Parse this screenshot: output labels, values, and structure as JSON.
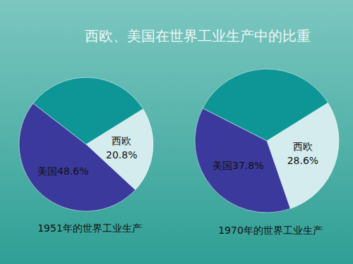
{
  "title": "西欧、美国在世界工业生产中的比重",
  "chart_data": [
    {
      "type": "pie",
      "title": "1951年的世界工业生产",
      "categories": [
        "西欧",
        "美国",
        null
      ],
      "values": [
        20.8,
        48.6,
        30.6
      ],
      "value_labels": [
        "20.8%",
        "48.6%",
        null
      ],
      "colors": [
        "#d4ecee",
        "#3b3a9c",
        "#0e9696"
      ],
      "data_labels": true
    },
    {
      "type": "pie",
      "title": "1970年的世界工业生产",
      "categories": [
        "西欧",
        "美国",
        null
      ],
      "values": [
        28.6,
        37.8,
        33.6
      ],
      "value_labels": [
        "28.6%",
        "37.8%",
        null
      ],
      "colors": [
        "#d4ecee",
        "#3b3a9c",
        "#0e9696"
      ],
      "data_labels": true
    }
  ]
}
